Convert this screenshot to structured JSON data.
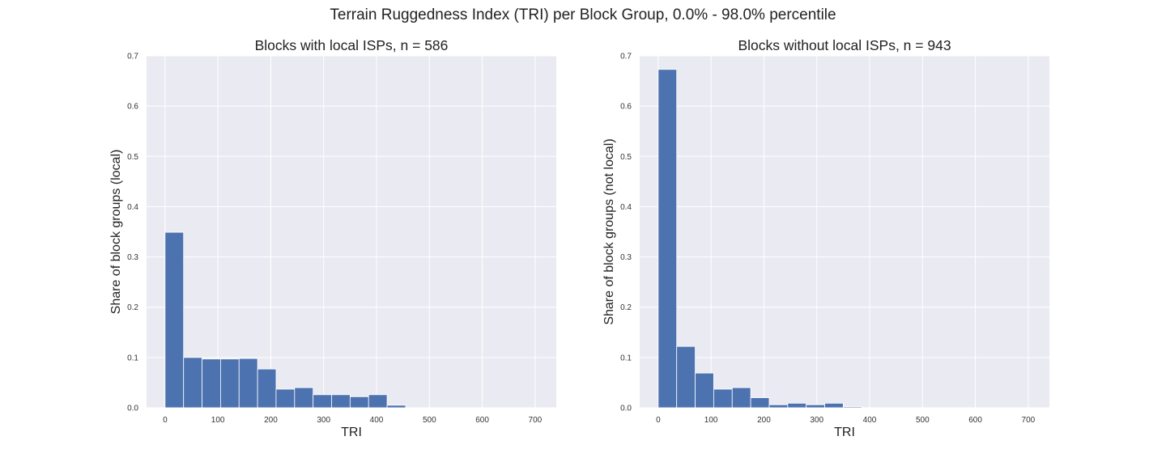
{
  "suptitle": "Terrain Ruggedness Index (TRI) per Block Group, 0.0% - 98.0% percentile",
  "chart_data": [
    {
      "type": "bar",
      "title": "Blocks with local ISPs, n = 586",
      "xlabel": "TRI",
      "ylabel": "Share of block groups (local)",
      "xlim": [
        -35,
        740
      ],
      "ylim": [
        0,
        0.7
      ],
      "xticks": [
        0,
        100,
        200,
        300,
        400,
        500,
        600,
        700
      ],
      "yticks": [
        0.0,
        0.1,
        0.2,
        0.3,
        0.4,
        0.5,
        0.6,
        0.7
      ],
      "bin_edges": [
        0,
        35,
        70,
        105,
        140,
        175,
        210,
        245,
        280,
        315,
        350,
        385,
        420,
        455,
        490,
        525,
        560,
        595,
        630,
        665,
        700
      ],
      "values": [
        0.349,
        0.1,
        0.097,
        0.097,
        0.098,
        0.077,
        0.037,
        0.04,
        0.026,
        0.026,
        0.022,
        0.026,
        0.005,
        0,
        0,
        0,
        0,
        0,
        0,
        0
      ],
      "grid": true,
      "color": "#4c72b0",
      "background": "#eaeaf2"
    },
    {
      "type": "bar",
      "title": "Blocks without local ISPs, n = 943",
      "xlabel": "TRI",
      "ylabel": "Share of block groups (not local)",
      "xlim": [
        -35,
        740
      ],
      "ylim": [
        0,
        0.7
      ],
      "xticks": [
        0,
        100,
        200,
        300,
        400,
        500,
        600,
        700
      ],
      "yticks": [
        0.0,
        0.1,
        0.2,
        0.3,
        0.4,
        0.5,
        0.6,
        0.7
      ],
      "bin_edges": [
        0,
        35,
        70,
        105,
        140,
        175,
        210,
        245,
        280,
        315,
        350,
        385,
        420,
        455,
        490,
        525,
        560,
        595,
        630,
        665,
        700
      ],
      "values": [
        0.673,
        0.122,
        0.069,
        0.037,
        0.04,
        0.02,
        0.006,
        0.009,
        0.006,
        0.009,
        0.002,
        0,
        0,
        0,
        0,
        0,
        0,
        0,
        0,
        0
      ],
      "grid": true,
      "color": "#4c72b0",
      "background": "#eaeaf2"
    }
  ]
}
